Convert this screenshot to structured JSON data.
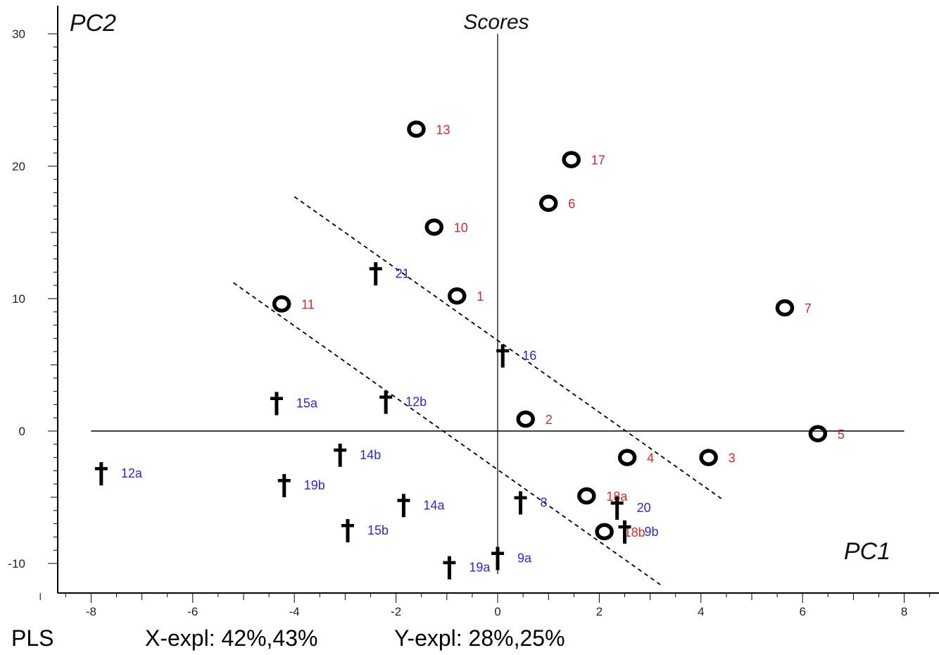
{
  "chart_data": {
    "type": "scatter",
    "title": "Scores",
    "xlabel": "PC1",
    "ylabel": "PC2",
    "xlim": [
      -8,
      8
    ],
    "ylim": [
      -10,
      30
    ],
    "x_ticks": [
      -8,
      -6,
      -4,
      -2,
      0,
      2,
      4,
      6,
      8
    ],
    "y_ticks": [
      -10,
      0,
      10,
      20,
      30
    ],
    "grid": false,
    "colors": {
      "o_label": "#d22a2a",
      "dagger_label": "#2a2acc",
      "marker": "#000000"
    },
    "series": [
      {
        "marker": "o",
        "points": [
          {
            "label": "13",
            "x": -1.6,
            "y": 22.8
          },
          {
            "label": "17",
            "x": 1.45,
            "y": 20.5
          },
          {
            "label": "6",
            "x": 1.0,
            "y": 17.2
          },
          {
            "label": "10",
            "x": -1.25,
            "y": 15.4
          },
          {
            "label": "1",
            "x": -0.8,
            "y": 10.2
          },
          {
            "label": "11",
            "x": -4.25,
            "y": 9.6
          },
          {
            "label": "7",
            "x": 5.65,
            "y": 9.3
          },
          {
            "label": "2",
            "x": 0.55,
            "y": 0.9
          },
          {
            "label": "5",
            "x": 6.3,
            "y": -0.2
          },
          {
            "label": "4",
            "x": 2.55,
            "y": -2.0
          },
          {
            "label": "3",
            "x": 4.15,
            "y": -2.0
          },
          {
            "label": "18a",
            "x": 1.75,
            "y": -4.9
          },
          {
            "label": "18b",
            "x": 2.1,
            "y": -7.6
          }
        ]
      },
      {
        "marker": "†",
        "points": [
          {
            "label": "21",
            "x": -2.4,
            "y": 11.9
          },
          {
            "label": "16",
            "x": 0.1,
            "y": 5.7
          },
          {
            "label": "15a",
            "x": -4.35,
            "y": 2.1
          },
          {
            "label": "12b",
            "x": -2.2,
            "y": 2.2
          },
          {
            "label": "14b",
            "x": -3.1,
            "y": -1.8
          },
          {
            "label": "12a",
            "x": -7.8,
            "y": -3.2
          },
          {
            "label": "19b",
            "x": -4.2,
            "y": -4.1
          },
          {
            "label": "14a",
            "x": -1.85,
            "y": -5.6
          },
          {
            "label": "8",
            "x": 0.45,
            "y": -5.4
          },
          {
            "label": "20",
            "x": 2.35,
            "y": -5.8
          },
          {
            "label": "15b",
            "x": -2.95,
            "y": -7.5
          },
          {
            "label": "9b",
            "x": 2.5,
            "y": -7.6
          },
          {
            "label": "9a",
            "x": 0.0,
            "y": -9.6
          },
          {
            "label": "19a",
            "x": -0.95,
            "y": -10.3
          }
        ]
      }
    ],
    "dashed_lines": [
      {
        "from": [
          -4.0,
          17.7
        ],
        "to": [
          4.4,
          -5.1
        ]
      },
      {
        "from": [
          -5.2,
          11.2
        ],
        "to": [
          3.2,
          -11.6
        ]
      }
    ]
  },
  "footer": {
    "method": "PLS",
    "x_expl": "X-expl: 42%,43%",
    "y_expl": "Y-expl: 28%,25%"
  }
}
